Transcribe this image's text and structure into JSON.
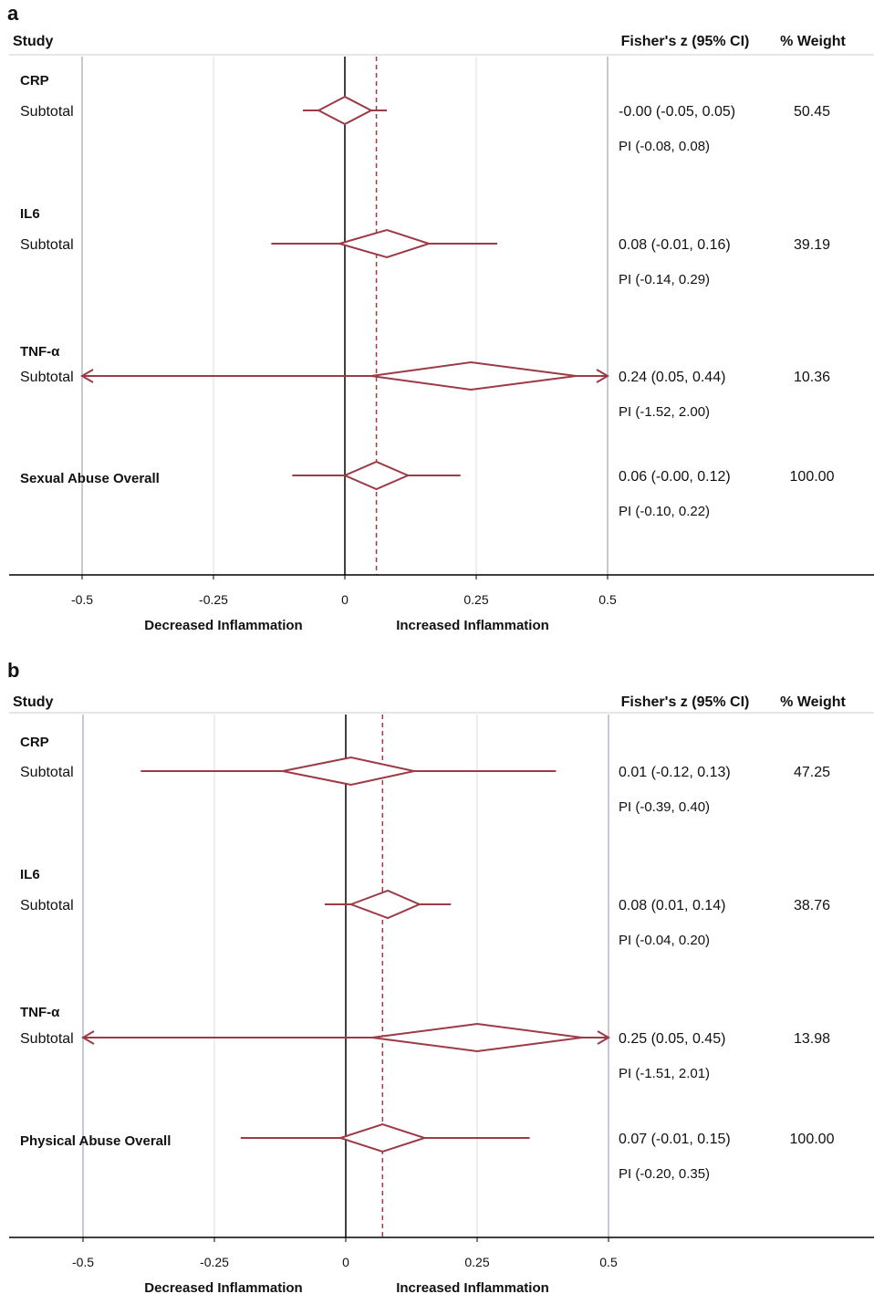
{
  "chart_data": [
    {
      "type": "forest",
      "panel_label": "a",
      "headers": {
        "study": "Study",
        "effect": "Fisher's z (95% CI)",
        "weight": "% Weight"
      },
      "x_ticks": [
        -0.5,
        -0.25,
        0,
        0.25,
        0.5
      ],
      "x_tick_labels": [
        "-0.5",
        "-0.25",
        "0",
        "0.25",
        "0.5"
      ],
      "xlim": [
        -0.5,
        0.5
      ],
      "direction_labels": {
        "left": "Decreased Inflammation",
        "right": "Increased Inflammation"
      },
      "overall_estimate": 0.06,
      "rows": [
        {
          "group": "CRP",
          "label": "Subtotal",
          "estimate": 0.0,
          "ci": [
            -0.05,
            0.05
          ],
          "pi": [
            -0.08,
            0.08
          ],
          "ci_text": "-0.00 (-0.05, 0.05)",
          "pi_text": "PI (-0.08, 0.08)",
          "weight": "50.45"
        },
        {
          "group": "IL6",
          "label": "Subtotal",
          "estimate": 0.08,
          "ci": [
            -0.01,
            0.16
          ],
          "pi": [
            -0.14,
            0.29
          ],
          "ci_text": "0.08 (-0.01, 0.16)",
          "pi_text": "PI (-0.14, 0.29)",
          "weight": "39.19"
        },
        {
          "group": "TNF-α",
          "label": "Subtotal",
          "estimate": 0.24,
          "ci": [
            0.05,
            0.44
          ],
          "pi": [
            -1.52,
            2.0
          ],
          "ci_text": "0.24 (0.05, 0.44)",
          "pi_text": "PI (-1.52, 2.00)",
          "weight": "10.36"
        },
        {
          "group": "",
          "label": "Sexual Abuse Overall",
          "estimate": 0.06,
          "ci": [
            0.0,
            0.12
          ],
          "pi": [
            -0.1,
            0.22
          ],
          "ci_text": "0.06 (-0.00, 0.12)",
          "pi_text": "PI (-0.10, 0.22)",
          "weight": "100.00",
          "overall": true
        }
      ]
    },
    {
      "type": "forest",
      "panel_label": "b",
      "headers": {
        "study": "Study",
        "effect": "Fisher's z (95% CI)",
        "weight": "% Weight"
      },
      "x_ticks": [
        -0.5,
        -0.25,
        0,
        0.25,
        0.5
      ],
      "x_tick_labels": [
        "-0.5",
        "-0.25",
        "0",
        "0.25",
        "0.5"
      ],
      "xlim": [
        -0.5,
        0.5
      ],
      "direction_labels": {
        "left": "Decreased Inflammation",
        "right": "Increased Inflammation"
      },
      "overall_estimate": 0.07,
      "rows": [
        {
          "group": "CRP",
          "label": "Subtotal",
          "estimate": 0.01,
          "ci": [
            -0.12,
            0.13
          ],
          "pi": [
            -0.39,
            0.4
          ],
          "ci_text": "0.01 (-0.12, 0.13)",
          "pi_text": "PI (-0.39, 0.40)",
          "weight": "47.25"
        },
        {
          "group": "IL6",
          "label": "Subtotal",
          "estimate": 0.08,
          "ci": [
            0.01,
            0.14
          ],
          "pi": [
            -0.04,
            0.2
          ],
          "ci_text": "0.08 (0.01, 0.14)",
          "pi_text": "PI (-0.04, 0.20)",
          "weight": "38.76"
        },
        {
          "group": "TNF-α",
          "label": "Subtotal",
          "estimate": 0.25,
          "ci": [
            0.05,
            0.45
          ],
          "pi": [
            -1.51,
            2.01
          ],
          "ci_text": "0.25 (0.05, 0.45)",
          "pi_text": "PI (-1.51, 2.01)",
          "weight": "13.98"
        },
        {
          "group": "",
          "label": "Physical Abuse Overall",
          "estimate": 0.07,
          "ci": [
            -0.01,
            0.15
          ],
          "pi": [
            -0.2,
            0.35
          ],
          "ci_text": "0.07 (-0.01, 0.15)",
          "pi_text": "PI (-0.20, 0.35)",
          "weight": "100.00",
          "overall": true
        }
      ]
    }
  ],
  "colors": {
    "marker": "#9c3a45",
    "grid": "#d9dde2",
    "bound": "#c4cbd6",
    "axis": "#000000"
  }
}
